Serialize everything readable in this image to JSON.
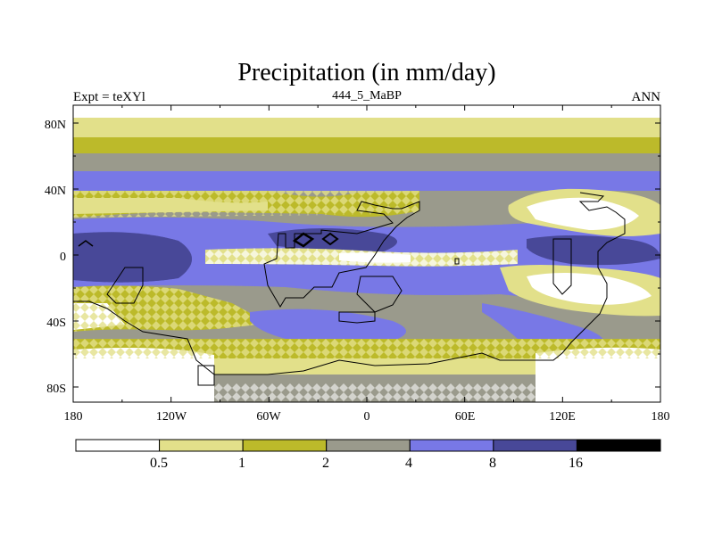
{
  "title": "Precipitation (in mm/day)",
  "subtitle_left": "Expt = teXYl",
  "subtitle_center": "444_5_MaBP",
  "subtitle_right": "ANN",
  "x_ticks": [
    "180",
    "120W",
    "60W",
    "0",
    "60E",
    "120E",
    "180"
  ],
  "y_ticks": [
    "80N",
    "40N",
    "0",
    "40S",
    "80S"
  ],
  "colorbar": {
    "levels": [
      "0.5",
      "1",
      "2",
      "4",
      "8",
      "16"
    ],
    "colors": [
      "#ffffff",
      "#e2e08a",
      "#bcba2a",
      "#9a9a8c",
      "#7878e6",
      "#484898",
      "#000000"
    ]
  },
  "map_colors": {
    "lt05": "#ffffff",
    "c05_1": "#e2e08a",
    "c1_2": "#bcba2a",
    "c2_4": "#9a9a8c",
    "c4_8": "#7878e6",
    "c8_16": "#484898",
    "gt16": "#000000"
  }
}
